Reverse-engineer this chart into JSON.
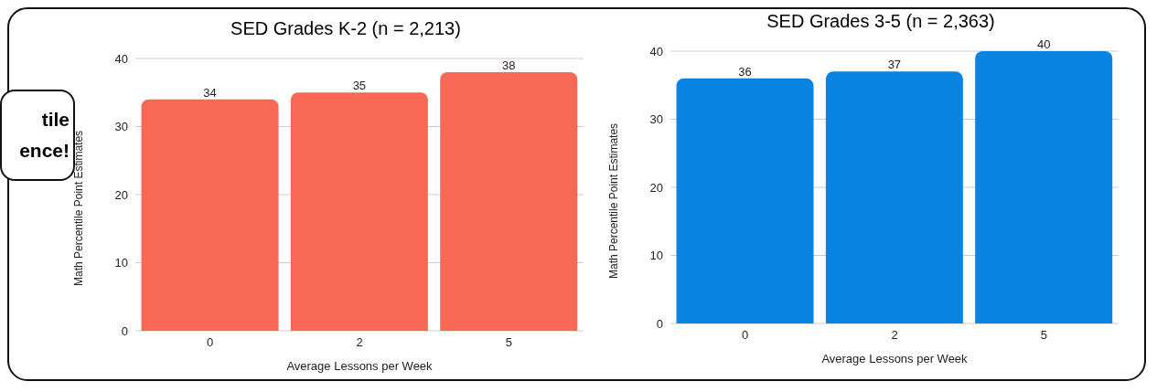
{
  "chart_data": [
    {
      "type": "bar",
      "title": "SED Grades K-2 (n = 2,213)",
      "xlabel": "Average Lessons per Week",
      "ylabel": "Math Percentile Point Estimates",
      "categories": [
        "0",
        "2",
        "5"
      ],
      "values": [
        34,
        35,
        38
      ],
      "color": "#f96854",
      "ylim": [
        0,
        40
      ],
      "yticks": [
        0,
        10,
        20,
        30,
        40
      ],
      "grid": "y",
      "data_labels": true,
      "annotations": [
        "tile ence!"
      ]
    },
    {
      "type": "bar",
      "title": "SED Grades 3-5 (n = 2,363)",
      "xlabel": "Average Lessons per Week",
      "ylabel": "Math Percentile Point Estimates",
      "categories": [
        "0",
        "2",
        "5"
      ],
      "values": [
        36,
        37,
        40
      ],
      "color": "#0984e3",
      "ylim": [
        0,
        40
      ],
      "yticks": [
        0,
        10,
        20,
        30,
        40
      ],
      "grid": "y",
      "data_labels": true
    }
  ]
}
